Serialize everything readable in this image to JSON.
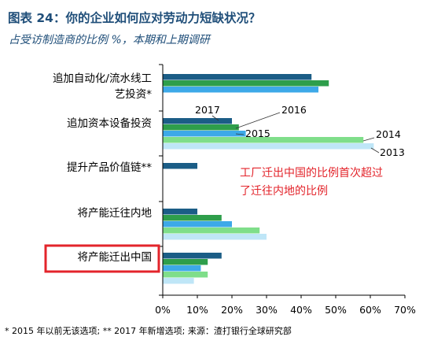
{
  "title": "图表 24：你的企业如何应对劳动力短缺状况？",
  "subtitle": "占受访制造商的比例 %，本期和上期调研",
  "footnote": "* 2015 年以前无该选项; ** 2017 年新增选项; 来源：渣打银行全球研究部",
  "annotation": "工厂迁出中国的比例首次超过了迁往内地的比例",
  "annotation_lines": [
    "工厂迁出中国的比例首次超过",
    "了迁往内地的比例"
  ],
  "colors": {
    "title": "#1f4e79",
    "2017": "#1b5d86",
    "2016": "#2e9e4b",
    "2015": "#3da9e8",
    "2014": "#7fde8a",
    "2013": "#bfe6f7",
    "annotation": "#e3242b",
    "highlight_box": "#e3242b"
  },
  "chart_data": {
    "type": "bar",
    "orientation": "horizontal",
    "categories": [
      [
        "追加自动化/流水线工",
        "艺投资*"
      ],
      [
        "追加资本设备投资"
      ],
      [
        "提升产品价值链**"
      ],
      [
        "将产能迁往内地"
      ],
      [
        "将产能迁出中国"
      ]
    ],
    "series": [
      {
        "name": "2017",
        "values": [
          43,
          20,
          10,
          10,
          17
        ]
      },
      {
        "name": "2016",
        "values": [
          48,
          22,
          null,
          17,
          13
        ]
      },
      {
        "name": "2015",
        "values": [
          45,
          24,
          null,
          20,
          11
        ]
      },
      {
        "name": "2014",
        "values": [
          null,
          58,
          null,
          28,
          13
        ]
      },
      {
        "name": "2013",
        "values": [
          null,
          61,
          null,
          30,
          9
        ]
      }
    ],
    "xlim": [
      0,
      70
    ],
    "xticks": [
      "0%",
      "10%",
      "20%",
      "30%",
      "40%",
      "50%",
      "60%",
      "70%"
    ],
    "grid": false,
    "highlighted_category": "将产能迁出中国"
  }
}
